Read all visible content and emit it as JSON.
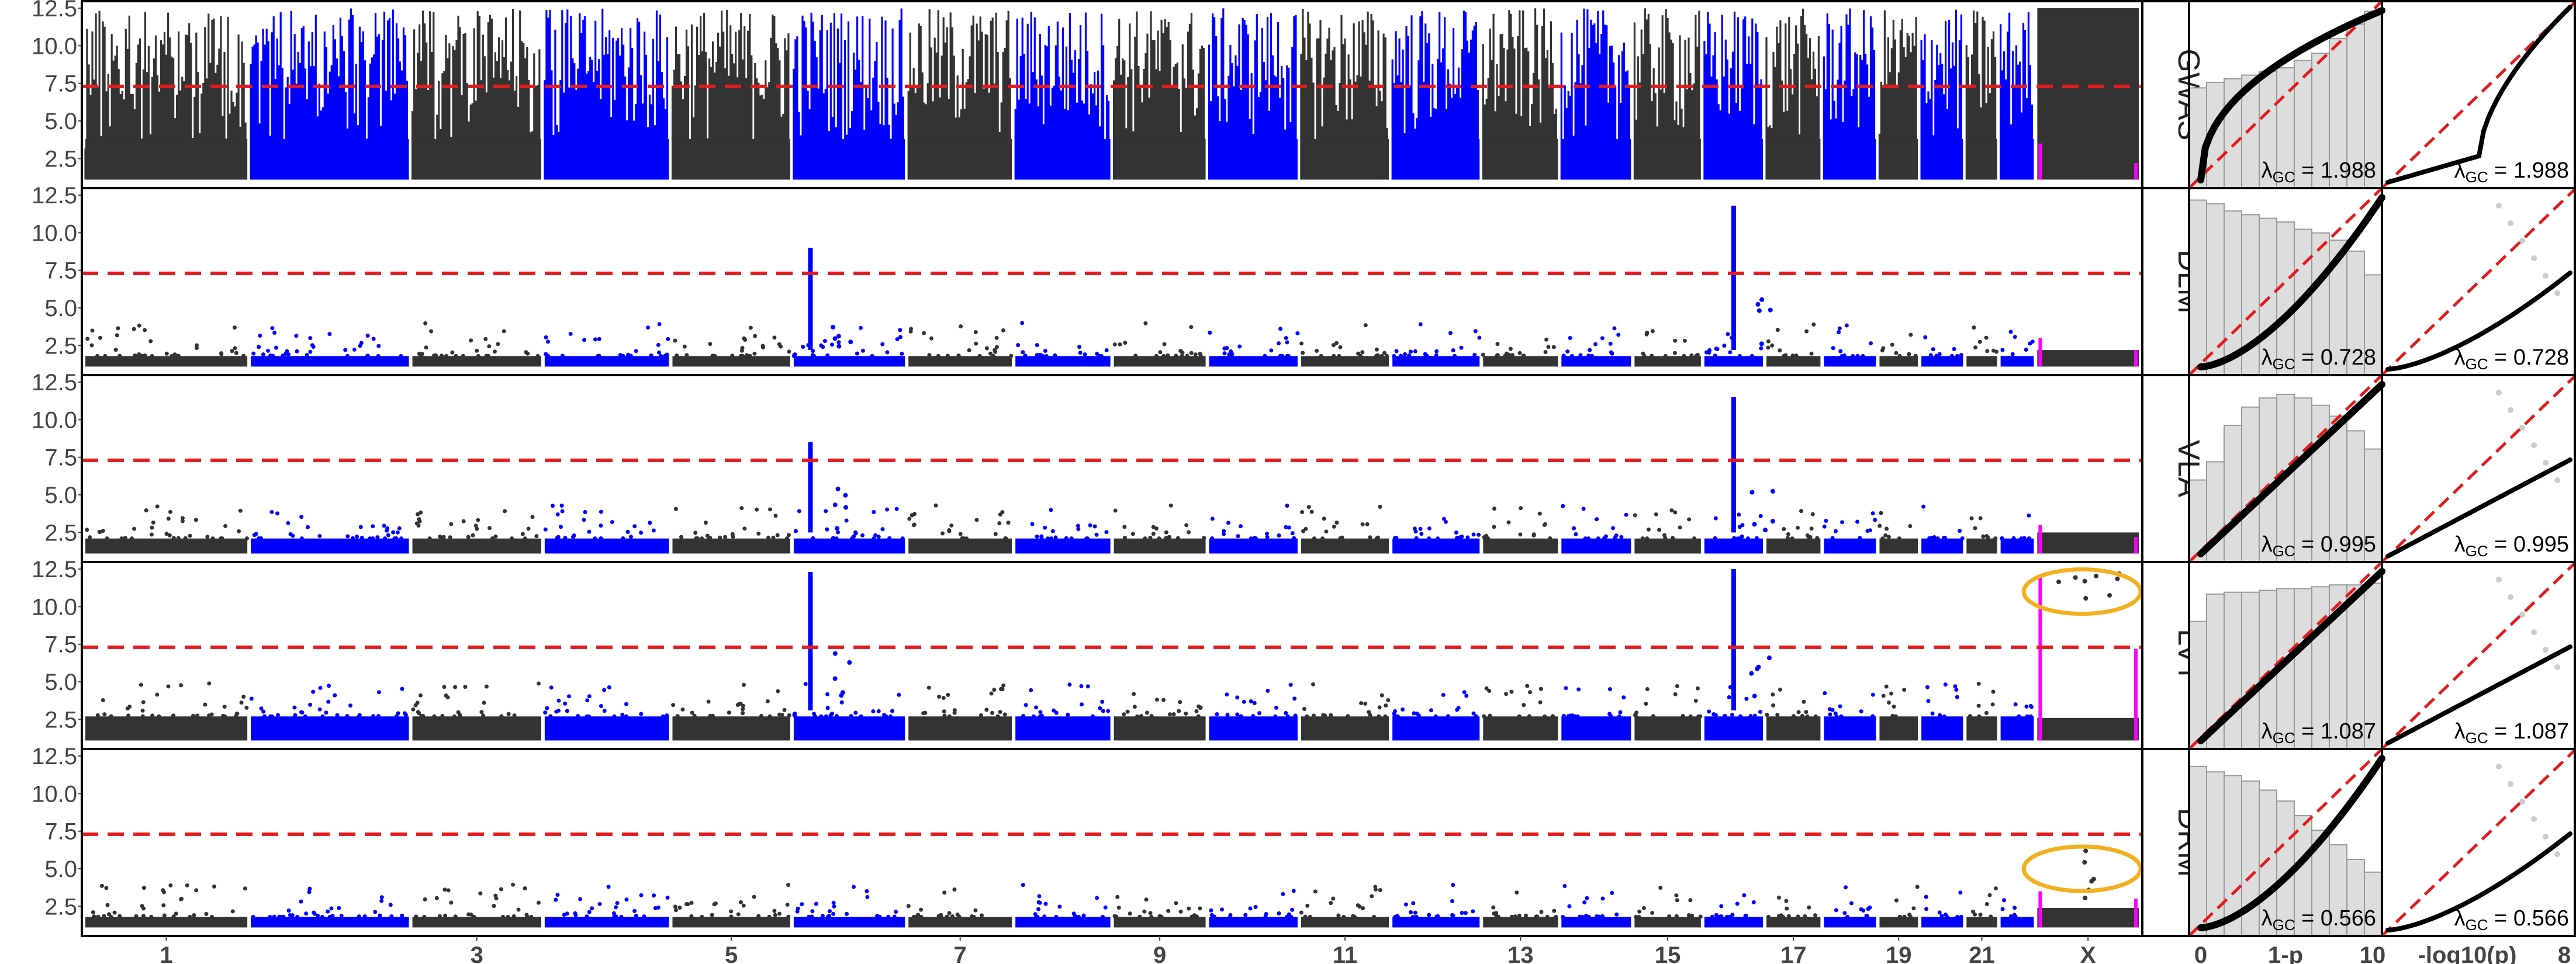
{
  "chart_data": {
    "type": "scatter",
    "layout": "five stacked Manhattan plots, each with a histogram of 1-p and a QQ plot of -log10(p)",
    "colors": {
      "chrom_dark": "#333333",
      "chrom_blue": "#0000ff",
      "chrom_x": "#ff00ff",
      "threshold": "#e41a1c",
      "highlight": "#f2b01e",
      "qq": "#000000",
      "histogram_fill": "#dddddd",
      "histogram_edge": "#999999"
    },
    "manhattan": {
      "ylim": [
        1,
        12.5
      ],
      "yticks": [
        "2.5",
        "5.0",
        "7.5",
        "10.0",
        "12.5"
      ],
      "ytick_values": [
        2.5,
        5.0,
        7.5,
        10.0,
        12.5
      ],
      "threshold": 7.3,
      "xticks": [
        "1",
        "3",
        "5",
        "7",
        "9",
        "11",
        "13",
        "15",
        "17",
        "19",
        "21",
        "X"
      ],
      "chromosomes": [
        "1",
        "2",
        "3",
        "4",
        "5",
        "6",
        "7",
        "8",
        "9",
        "10",
        "11",
        "12",
        "13",
        "14",
        "15",
        "16",
        "17",
        "18",
        "19",
        "20",
        "21",
        "22",
        "X"
      ],
      "chrom_lengths": [
        249,
        243,
        198,
        191,
        181,
        171,
        159,
        146,
        141,
        136,
        135,
        134,
        115,
        107,
        102,
        90,
        83,
        80,
        59,
        64,
        47,
        51,
        156
      ]
    },
    "histogram": {
      "xticks": [
        "0",
        "1-p",
        "10"
      ]
    },
    "qq": {
      "xticks": [
        "-log10(p)",
        "8"
      ]
    },
    "lambda_symbol": "λ",
    "lambda_sub": "GC",
    "panels": [
      {
        "name": "GWAS",
        "lambda": "1.988",
        "baseline": 3.6,
        "peaks": [],
        "hist_heights": [
          0.55,
          0.58,
          0.6,
          0.62,
          0.64,
          0.66,
          0.7,
          0.74,
          0.82,
          0.9,
          0.97
        ],
        "qq_shape": "inflated",
        "x_pattern": "normal",
        "highlight": false
      },
      {
        "name": "DLM",
        "lambda": "0.728",
        "baseline": 2.2,
        "peaks": [
          {
            "chrom": 6,
            "pos": 0.15,
            "height": 9.0
          },
          {
            "chrom": 16,
            "pos": 0.5,
            "height": 11.8
          }
        ],
        "hist_heights": [
          0.96,
          0.94,
          0.9,
          0.88,
          0.86,
          0.84,
          0.8,
          0.78,
          0.74,
          0.68,
          0.55
        ],
        "qq_shape": "deflated",
        "x_pattern": "normal",
        "highlight": false
      },
      {
        "name": "VLA",
        "lambda": "0.995",
        "baseline": 2.5,
        "peaks": [
          {
            "chrom": 6,
            "pos": 0.15,
            "height": 8.5
          },
          {
            "chrom": 16,
            "pos": 0.5,
            "height": 11.5
          }
        ],
        "hist_heights": [
          0.45,
          0.55,
          0.75,
          0.85,
          0.9,
          0.92,
          0.9,
          0.86,
          0.8,
          0.72,
          0.62
        ],
        "qq_shape": "null",
        "x_pattern": "normal",
        "highlight": false
      },
      {
        "name": "LVT",
        "lambda": "1.087",
        "baseline": 3.1,
        "peaks": [
          {
            "chrom": 6,
            "pos": 0.15,
            "height": 12.3
          },
          {
            "chrom": 16,
            "pos": 0.5,
            "height": 12.5
          }
        ],
        "hist_heights": [
          0.7,
          0.85,
          0.86,
          0.86,
          0.87,
          0.88,
          0.88,
          0.89,
          0.9,
          0.9,
          0.91
        ],
        "qq_shape": "null",
        "x_pattern": "lvt",
        "highlight": true,
        "highlight_y": 11.0
      },
      {
        "name": "DRM",
        "lambda": "0.566",
        "baseline": 2.2,
        "peaks": [],
        "hist_heights": [
          0.93,
          0.9,
          0.88,
          0.85,
          0.8,
          0.74,
          0.66,
          0.58,
          0.5,
          0.42,
          0.35
        ],
        "qq_shape": "deflated",
        "x_pattern": "drm",
        "highlight": true,
        "highlight_y": 5.0
      }
    ]
  }
}
